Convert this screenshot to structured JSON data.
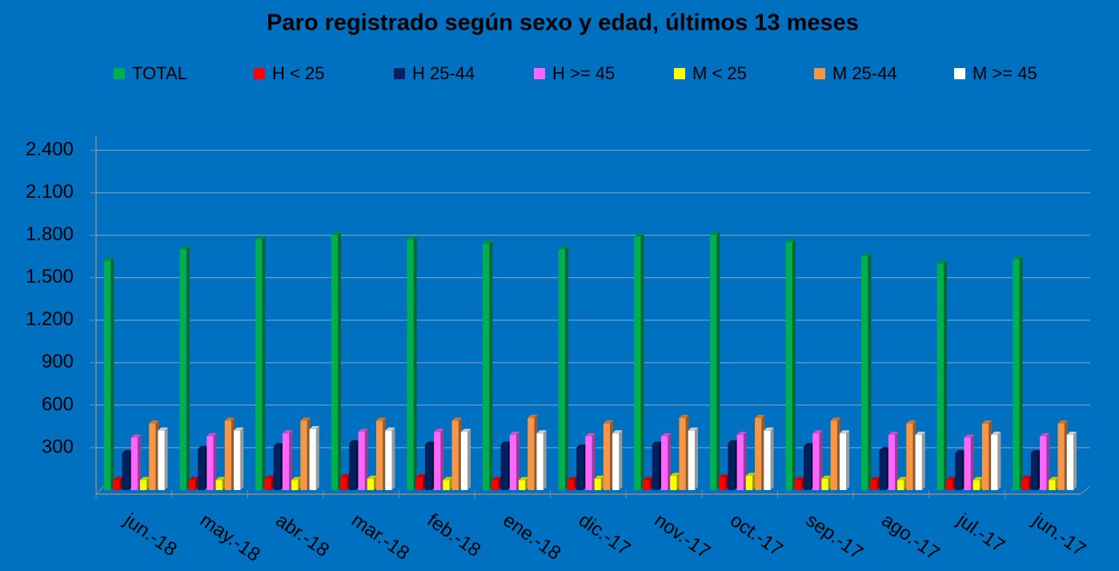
{
  "chart_data": {
    "type": "bar3d",
    "title": "Paro registrado según sexo y edad, últimos 13 meses",
    "categories": [
      "jun.-18",
      "may.-18",
      "abr.-18",
      "mar.-18",
      "feb.-18",
      "ene.-18",
      "dic.-17",
      "nov.-17",
      "oct.-17",
      "sep.-17",
      "ago.-17",
      "jul.-17",
      "jun.-17"
    ],
    "series": [
      {
        "name": "TOTAL",
        "color": "#00b050",
        "values": [
          1620,
          1700,
          1770,
          1800,
          1770,
          1740,
          1700,
          1790,
          1800,
          1750,
          1650,
          1600,
          1630
        ]
      },
      {
        "name": "H < 25",
        "color": "#ff0000",
        "values": [
          70,
          70,
          80,
          90,
          90,
          70,
          70,
          70,
          90,
          70,
          70,
          70,
          80
        ]
      },
      {
        "name": "H 25-44",
        "color": "#002060",
        "values": [
          260,
          290,
          310,
          330,
          320,
          320,
          300,
          320,
          330,
          310,
          280,
          260,
          260
        ]
      },
      {
        "name": "H >= 45",
        "color": "#ff66ff",
        "values": [
          370,
          380,
          400,
          410,
          410,
          390,
          380,
          380,
          390,
          400,
          390,
          370,
          380
        ]
      },
      {
        "name": "M < 25",
        "color": "#ffff00",
        "values": [
          70,
          70,
          70,
          80,
          70,
          70,
          80,
          100,
          100,
          80,
          70,
          70,
          70
        ]
      },
      {
        "name": "M 25-44",
        "color": "#f79646",
        "values": [
          470,
          490,
          490,
          490,
          490,
          510,
          470,
          510,
          510,
          490,
          470,
          470,
          470
        ]
      },
      {
        "name": "M >= 45",
        "color": "#ffffff",
        "values": [
          420,
          420,
          430,
          420,
          410,
          400,
          400,
          420,
          420,
          400,
          390,
          390,
          390
        ]
      }
    ],
    "ylim": [
      0,
      2500
    ],
    "yticks": [
      {
        "value": 300,
        "label": "300"
      },
      {
        "value": 600,
        "label": "600"
      },
      {
        "value": 900,
        "label": "900"
      },
      {
        "value": 1200,
        "label": "1.200"
      },
      {
        "value": 1500,
        "label": "1.500"
      },
      {
        "value": 1800,
        "label": "1.800"
      },
      {
        "value": 2100,
        "label": "2.100"
      },
      {
        "value": 2400,
        "label": "2.400"
      }
    ],
    "grid": true
  }
}
